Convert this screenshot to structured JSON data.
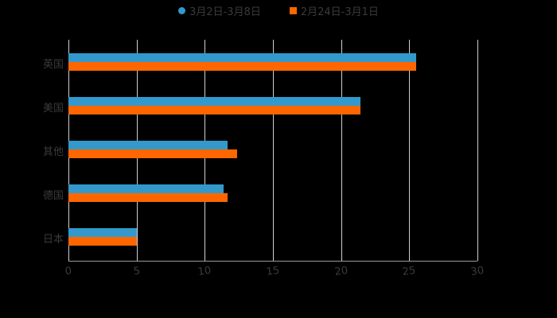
{
  "chart_data": {
    "type": "bar",
    "orientation": "horizontal",
    "title": "",
    "xlabel": "",
    "ylabel": "",
    "categories": [
      "英国",
      "美国",
      "其他",
      "德国",
      "日本"
    ],
    "series": [
      {
        "name": "3月2日-3月8日",
        "color": "#3399CC",
        "values": [
          25.5,
          21.4,
          11.7,
          11.4,
          5.0
        ]
      },
      {
        "name": "2月24日-3月1日",
        "color": "#FF6600",
        "values": [
          25.5,
          21.4,
          12.4,
          11.7,
          5.0
        ]
      }
    ],
    "xlim": [
      0,
      30
    ],
    "xticks": [
      "0",
      "5",
      "10",
      "15",
      "20",
      "25",
      "30"
    ],
    "grid": true,
    "legend_position": "top"
  },
  "legend": {
    "items": [
      {
        "label": "3月2日-3月8日",
        "color": "#3399CC"
      },
      {
        "label": "2月24日-3月1日",
        "color": "#FF6600"
      }
    ]
  }
}
